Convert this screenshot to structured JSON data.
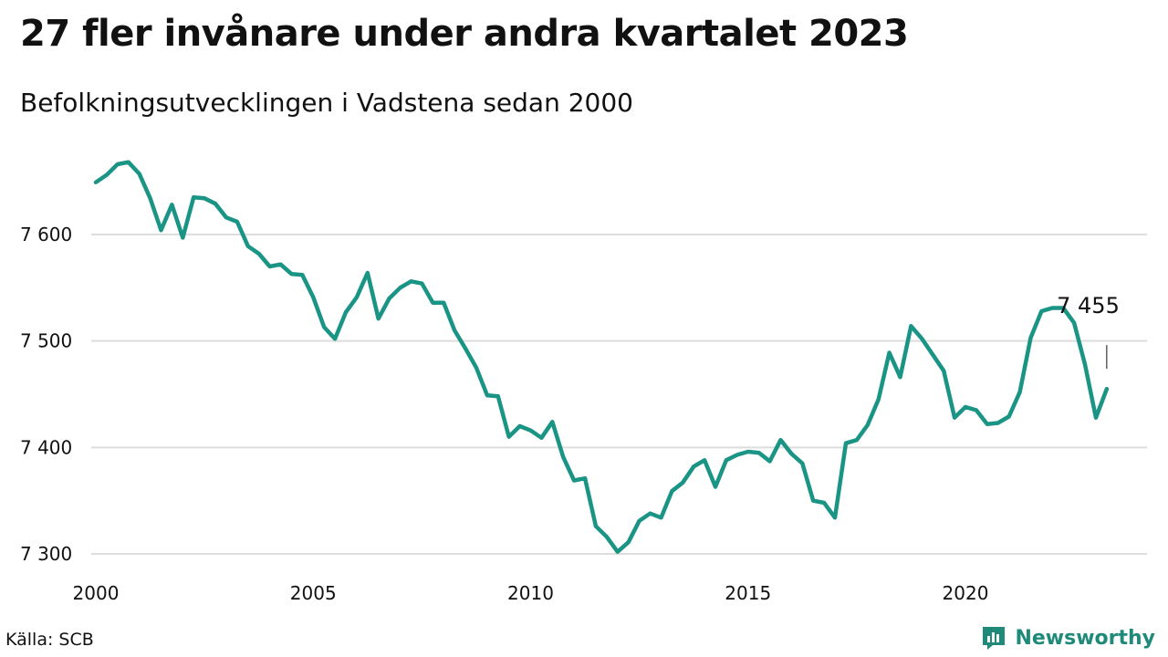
{
  "title": "27 fler invånare under andra kvartalet 2023",
  "subtitle": "Befolkningsutvecklingen i Vadstena sedan 2000",
  "source": "Källa: SCB",
  "brand": {
    "name": "Newsworthy",
    "icon": "newsworthy-logo-icon",
    "color": "#1f8a7a"
  },
  "colors": {
    "line": "#1a9485",
    "grid": "#dddddd"
  },
  "chart_data": {
    "type": "line",
    "title": "27 fler invånare under andra kvartalet 2023",
    "subtitle": "Befolkningsutvecklingen i Vadstena sedan 2000",
    "xlabel": "",
    "ylabel": "",
    "xlim": [
      2000,
      2024.5
    ],
    "ylim": [
      7295,
      7680
    ],
    "grid": true,
    "yticks": [
      7300,
      7400,
      7500,
      7600
    ],
    "ytick_labels": [
      "7 300",
      "7 400",
      "7 500",
      "7 600"
    ],
    "xticks": [
      2000,
      2005,
      2010,
      2015,
      2020
    ],
    "xtick_labels": [
      "2000",
      "2005",
      "2010",
      "2015",
      "2020"
    ],
    "annotation": {
      "text": "7 455",
      "x": 2023.25,
      "y": 7455
    },
    "series": [
      {
        "x": [
          2000,
          2000.25,
          2000.5,
          2000.75,
          2001,
          2001.25,
          2001.5,
          2001.75,
          2002,
          2002.25,
          2002.5,
          2002.75,
          2003,
          2003.25,
          2003.5,
          2003.75,
          2004,
          2004.25,
          2004.5,
          2004.75,
          2005,
          2005.25,
          2005.5,
          2005.75,
          2006,
          2006.25,
          2006.5,
          2006.75,
          2007,
          2007.25,
          2007.5,
          2007.75,
          2008,
          2008.25,
          2008.5,
          2008.75,
          2009,
          2009.25,
          2009.5,
          2009.75,
          2010,
          2010.25,
          2010.5,
          2010.75,
          2011,
          2011.25,
          2011.5,
          2011.75,
          2012,
          2012.25,
          2012.5,
          2012.75,
          2013,
          2013.25,
          2013.5,
          2013.75,
          2014,
          2014.25,
          2014.5,
          2014.75,
          2015,
          2015.25,
          2015.5,
          2015.75,
          2016,
          2016.25,
          2016.5,
          2016.75,
          2017,
          2017.25,
          2017.5,
          2017.75,
          2018,
          2018.25,
          2018.5,
          2018.75,
          2019,
          2019.25,
          2019.5,
          2019.75,
          2020,
          2020.25,
          2020.5,
          2020.75,
          2021,
          2021.25,
          2021.5,
          2021.75,
          2022,
          2022.25,
          2022.5,
          2022.75,
          2023,
          2023.25
        ],
        "values": [
          7649,
          7656,
          7666,
          7668,
          7657,
          7634,
          7604,
          7628,
          7597,
          7635,
          7634,
          7629,
          7616,
          7612,
          7589,
          7582,
          7570,
          7572,
          7563,
          7562,
          7541,
          7513,
          7502,
          7527,
          7541,
          7564,
          7521,
          7540,
          7550,
          7556,
          7554,
          7536,
          7536,
          7510,
          7493,
          7475,
          7449,
          7448,
          7410,
          7420,
          7416,
          7409,
          7424,
          7391,
          7369,
          7371,
          7326,
          7316,
          7302,
          7311,
          7331,
          7338,
          7334,
          7359,
          7367,
          7382,
          7388,
          7363,
          7388,
          7393,
          7396,
          7395,
          7387,
          7407,
          7394,
          7385,
          7350,
          7348,
          7334,
          7404,
          7407,
          7421,
          7445,
          7489,
          7466,
          7514,
          7502,
          7487,
          7472,
          7428,
          7438,
          7435,
          7422,
          7423,
          7429,
          7452,
          7503,
          7528,
          7531,
          7531,
          7517,
          7478,
          7428,
          7455
        ]
      }
    ]
  }
}
